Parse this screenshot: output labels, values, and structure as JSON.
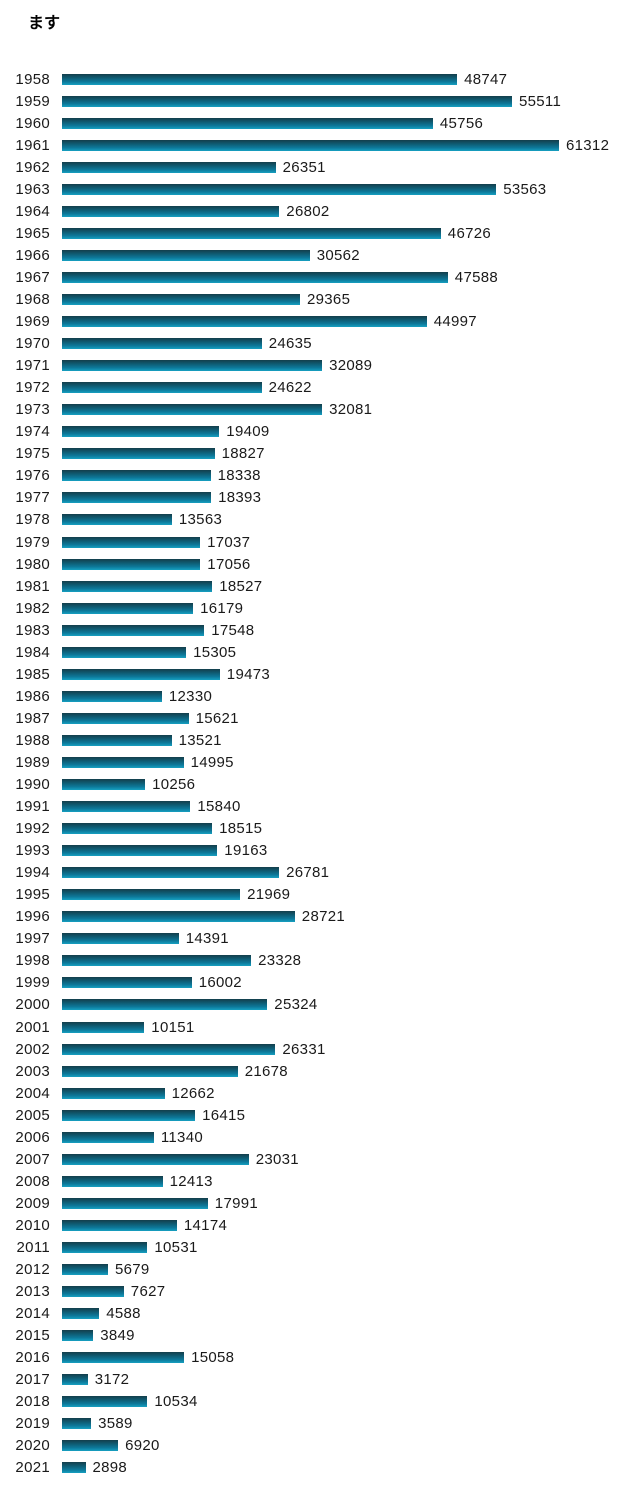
{
  "chart_data": {
    "type": "bar",
    "orientation": "horizontal",
    "title": "ます",
    "categories": [
      "1958",
      "1959",
      "1960",
      "1961",
      "1962",
      "1963",
      "1964",
      "1965",
      "1966",
      "1967",
      "1968",
      "1969",
      "1970",
      "1971",
      "1972",
      "1973",
      "1974",
      "1975",
      "1976",
      "1977",
      "1978",
      "1979",
      "1980",
      "1981",
      "1982",
      "1983",
      "1984",
      "1985",
      "1986",
      "1987",
      "1988",
      "1989",
      "1990",
      "1991",
      "1992",
      "1993",
      "1994",
      "1995",
      "1996",
      "1997",
      "1998",
      "1999",
      "2000",
      "2001",
      "2002",
      "2003",
      "2004",
      "2005",
      "2006",
      "2007",
      "2008",
      "2009",
      "2010",
      "2011",
      "2012",
      "2013",
      "2014",
      "2015",
      "2016",
      "2017",
      "2018",
      "2019",
      "2020",
      "2021"
    ],
    "values": [
      48747,
      55511,
      45756,
      61312,
      26351,
      53563,
      26802,
      46726,
      30562,
      47588,
      29365,
      44997,
      24635,
      32089,
      24622,
      32081,
      19409,
      18827,
      18338,
      18393,
      13563,
      17037,
      17056,
      18527,
      16179,
      17548,
      15305,
      19473,
      12330,
      15621,
      13521,
      14995,
      10256,
      15840,
      18515,
      19163,
      26781,
      21969,
      28721,
      14391,
      23328,
      16002,
      25324,
      10151,
      26331,
      21678,
      12662,
      16415,
      11340,
      23031,
      12413,
      17991,
      14174,
      10531,
      5679,
      7627,
      4588,
      3849,
      15058,
      3172,
      10534,
      3589,
      6920,
      2898
    ],
    "value_labels_shown": true,
    "xlim": [
      0,
      61312
    ],
    "grid": false,
    "legend": false,
    "colors": {
      "bar_gradient_top": "#143e4b",
      "bar_gradient_upper_mid": "#0f5b72",
      "bar_gradient_lower_mid": "#0d7899",
      "bar_gradient_bottom": "#17a0c1",
      "label_text": "#1a1a1a",
      "title_text": "#000000",
      "background": "#ffffff"
    }
  }
}
